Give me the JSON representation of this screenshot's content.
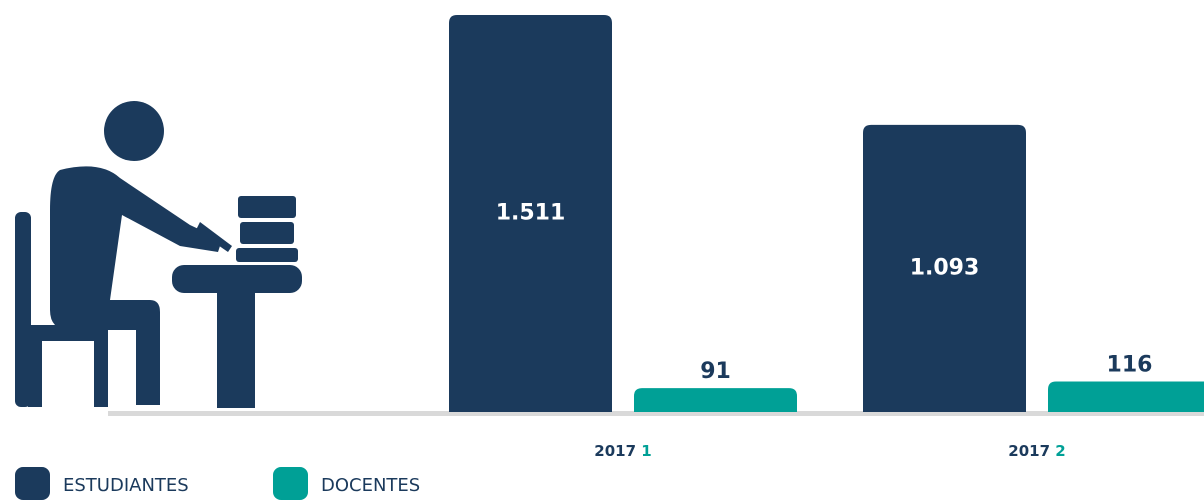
{
  "chart_data": {
    "type": "bar",
    "categories": [
      "2017 1",
      "2017 2"
    ],
    "series": [
      {
        "name": "ESTUDIANTES",
        "color": "#1b3a5c",
        "values": [
          1511,
          1093
        ],
        "value_labels": [
          "1.511",
          "1.093"
        ]
      },
      {
        "name": "DOCENTES",
        "color": "#00a096",
        "values": [
          91,
          116
        ]
      }
    ],
    "ylim": [
      0,
      1511
    ]
  }
}
